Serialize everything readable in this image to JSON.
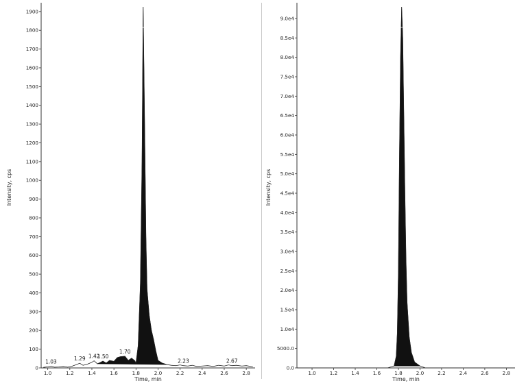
{
  "chart_data": [
    {
      "type": "line",
      "title": "",
      "xlabel": "Time, min",
      "ylabel": "Intensity, cps",
      "xlim": [
        0.94,
        2.88
      ],
      "ylim": [
        0,
        1925
      ],
      "x_ticks": [
        "1.0",
        "1.2",
        "1.4",
        "1.6",
        "1.8",
        "2.0",
        "2.2",
        "2.4",
        "2.6",
        "2.8"
      ],
      "y_ticks": [
        "0",
        "100",
        "200",
        "300",
        "400",
        "500",
        "600",
        "700",
        "800",
        "900",
        "1000",
        "1100",
        "1200",
        "1300",
        "1400",
        "1500",
        "1600",
        "1700",
        "1800",
        "1900"
      ],
      "grid": false,
      "series": [
        {
          "x": [
            0.96,
            1.0,
            1.03,
            1.06,
            1.1,
            1.14,
            1.18,
            1.22,
            1.26,
            1.29,
            1.32,
            1.36,
            1.4,
            1.42,
            1.45,
            1.48,
            1.5,
            1.53,
            1.56,
            1.6,
            1.63,
            1.66,
            1.7,
            1.73,
            1.76,
            1.79,
            1.8,
            1.82,
            1.84,
            1.855,
            1.865,
            1.875,
            1.89,
            1.9,
            1.92,
            1.94,
            1.96,
            1.98,
            2.0,
            2.04,
            2.08,
            2.12,
            2.16,
            2.2,
            2.23,
            2.27,
            2.31,
            2.35,
            2.4,
            2.45,
            2.5,
            2.55,
            2.6,
            2.64,
            2.67,
            2.71,
            2.76,
            2.8,
            2.86
          ],
          "y": [
            3,
            6,
            10,
            4,
            5,
            8,
            4,
            9,
            18,
            25,
            14,
            20,
            30,
            38,
            22,
            30,
            36,
            26,
            40,
            35,
            55,
            60,
            62,
            40,
            52,
            38,
            25,
            120,
            450,
            1100,
            1925,
            1450,
            700,
            420,
            280,
            200,
            150,
            90,
            40,
            25,
            18,
            14,
            12,
            16,
            12,
            10,
            14,
            8,
            10,
            12,
            8,
            14,
            10,
            16,
            12,
            14,
            10,
            12,
            6
          ]
        }
      ],
      "peak_labels": [
        {
          "x": 1.03,
          "y": 10,
          "text": "1.03"
        },
        {
          "x": 1.29,
          "y": 25,
          "text": "1.29"
        },
        {
          "x": 1.42,
          "y": 38,
          "text": "1.42"
        },
        {
          "x": 1.5,
          "y": 36,
          "text": "1.50"
        },
        {
          "x": 1.7,
          "y": 62,
          "text": "1.70"
        },
        {
          "x": 2.23,
          "y": 12,
          "text": "2.23"
        },
        {
          "x": 2.67,
          "y": 12,
          "text": "2.67"
        }
      ],
      "fill_color": "#111111",
      "line_color": "#222222"
    },
    {
      "type": "line",
      "title": "",
      "xlabel": "Time, min",
      "ylabel": "Intensity, cps",
      "xlim": [
        0.86,
        2.88
      ],
      "ylim": [
        0,
        93000
      ],
      "x_ticks": [
        "1.0",
        "1.2",
        "1.4",
        "1.6",
        "1.8",
        "2.0",
        "2.2",
        "2.4",
        "2.6",
        "2.8"
      ],
      "y_ticks": [
        "0.0",
        "5000.0",
        "1.0e4",
        "1.5e4",
        "2.0e4",
        "2.5e4",
        "3.0e4",
        "3.5e4",
        "4.0e4",
        "4.5e4",
        "5.0e4",
        "5.5e4",
        "6.0e4",
        "6.5e4",
        "7.0e4",
        "7.5e4",
        "8.0e4",
        "8.5e4",
        "9.0e4"
      ],
      "grid": false,
      "series": [
        {
          "x": [
            0.86,
            1.0,
            1.2,
            1.4,
            1.6,
            1.7,
            1.76,
            1.78,
            1.79,
            1.8,
            1.81,
            1.82,
            1.83,
            1.84,
            1.85,
            1.86,
            1.87,
            1.88,
            1.9,
            1.92,
            1.95,
            2.0,
            2.05,
            2.2,
            2.4,
            2.6,
            2.88
          ],
          "y": [
            0,
            0,
            0,
            0,
            0,
            0,
            500,
            3000,
            9000,
            25000,
            55000,
            80000,
            93000,
            85000,
            65000,
            45000,
            28000,
            17000,
            8000,
            4000,
            1500,
            500,
            0,
            0,
            0,
            0,
            0
          ]
        }
      ],
      "fill_color": "#111111",
      "line_color": "#222222"
    }
  ]
}
